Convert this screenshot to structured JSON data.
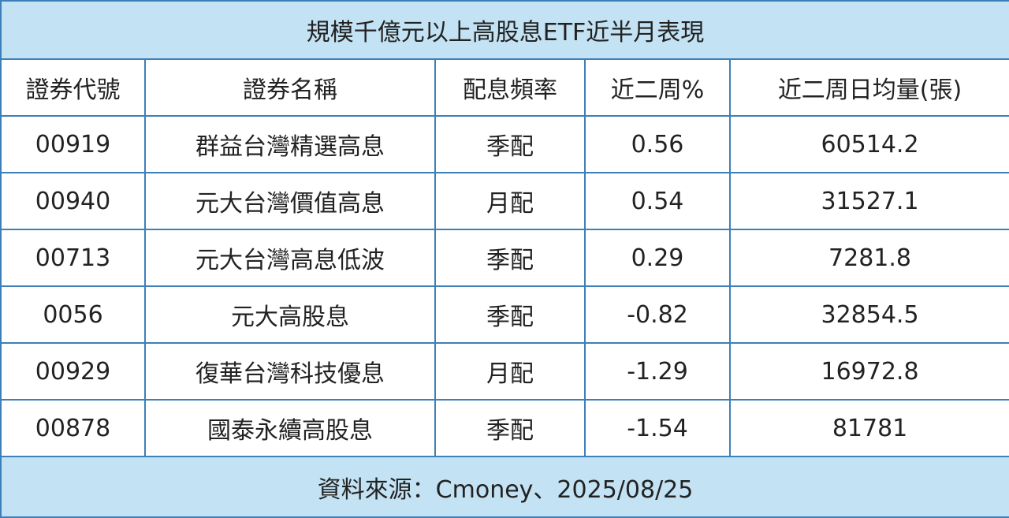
{
  "table": {
    "title": "規模千億元以上高股息ETF近半月表現",
    "columns": [
      "證券代號",
      "證券名稱",
      "配息頻率",
      "近二周%",
      "近二周日均量(張)"
    ],
    "rows": [
      [
        "00919",
        "群益台灣精選高息",
        "季配",
        "0.56",
        "60514.2"
      ],
      [
        "00940",
        "元大台灣價值高息",
        "月配",
        "0.54",
        "31527.1"
      ],
      [
        "00713",
        "元大台灣高息低波",
        "季配",
        "0.29",
        "7281.8"
      ],
      [
        "0056",
        "元大高股息",
        "季配",
        "-0.82",
        "32854.5"
      ],
      [
        "00929",
        "復華台灣科技優息",
        "月配",
        "-1.29",
        "16972.8"
      ],
      [
        "00878",
        "國泰永續高股息",
        "季配",
        "-1.54",
        "81781"
      ]
    ],
    "source": "資料來源：Cmoney、2025/08/25"
  }
}
